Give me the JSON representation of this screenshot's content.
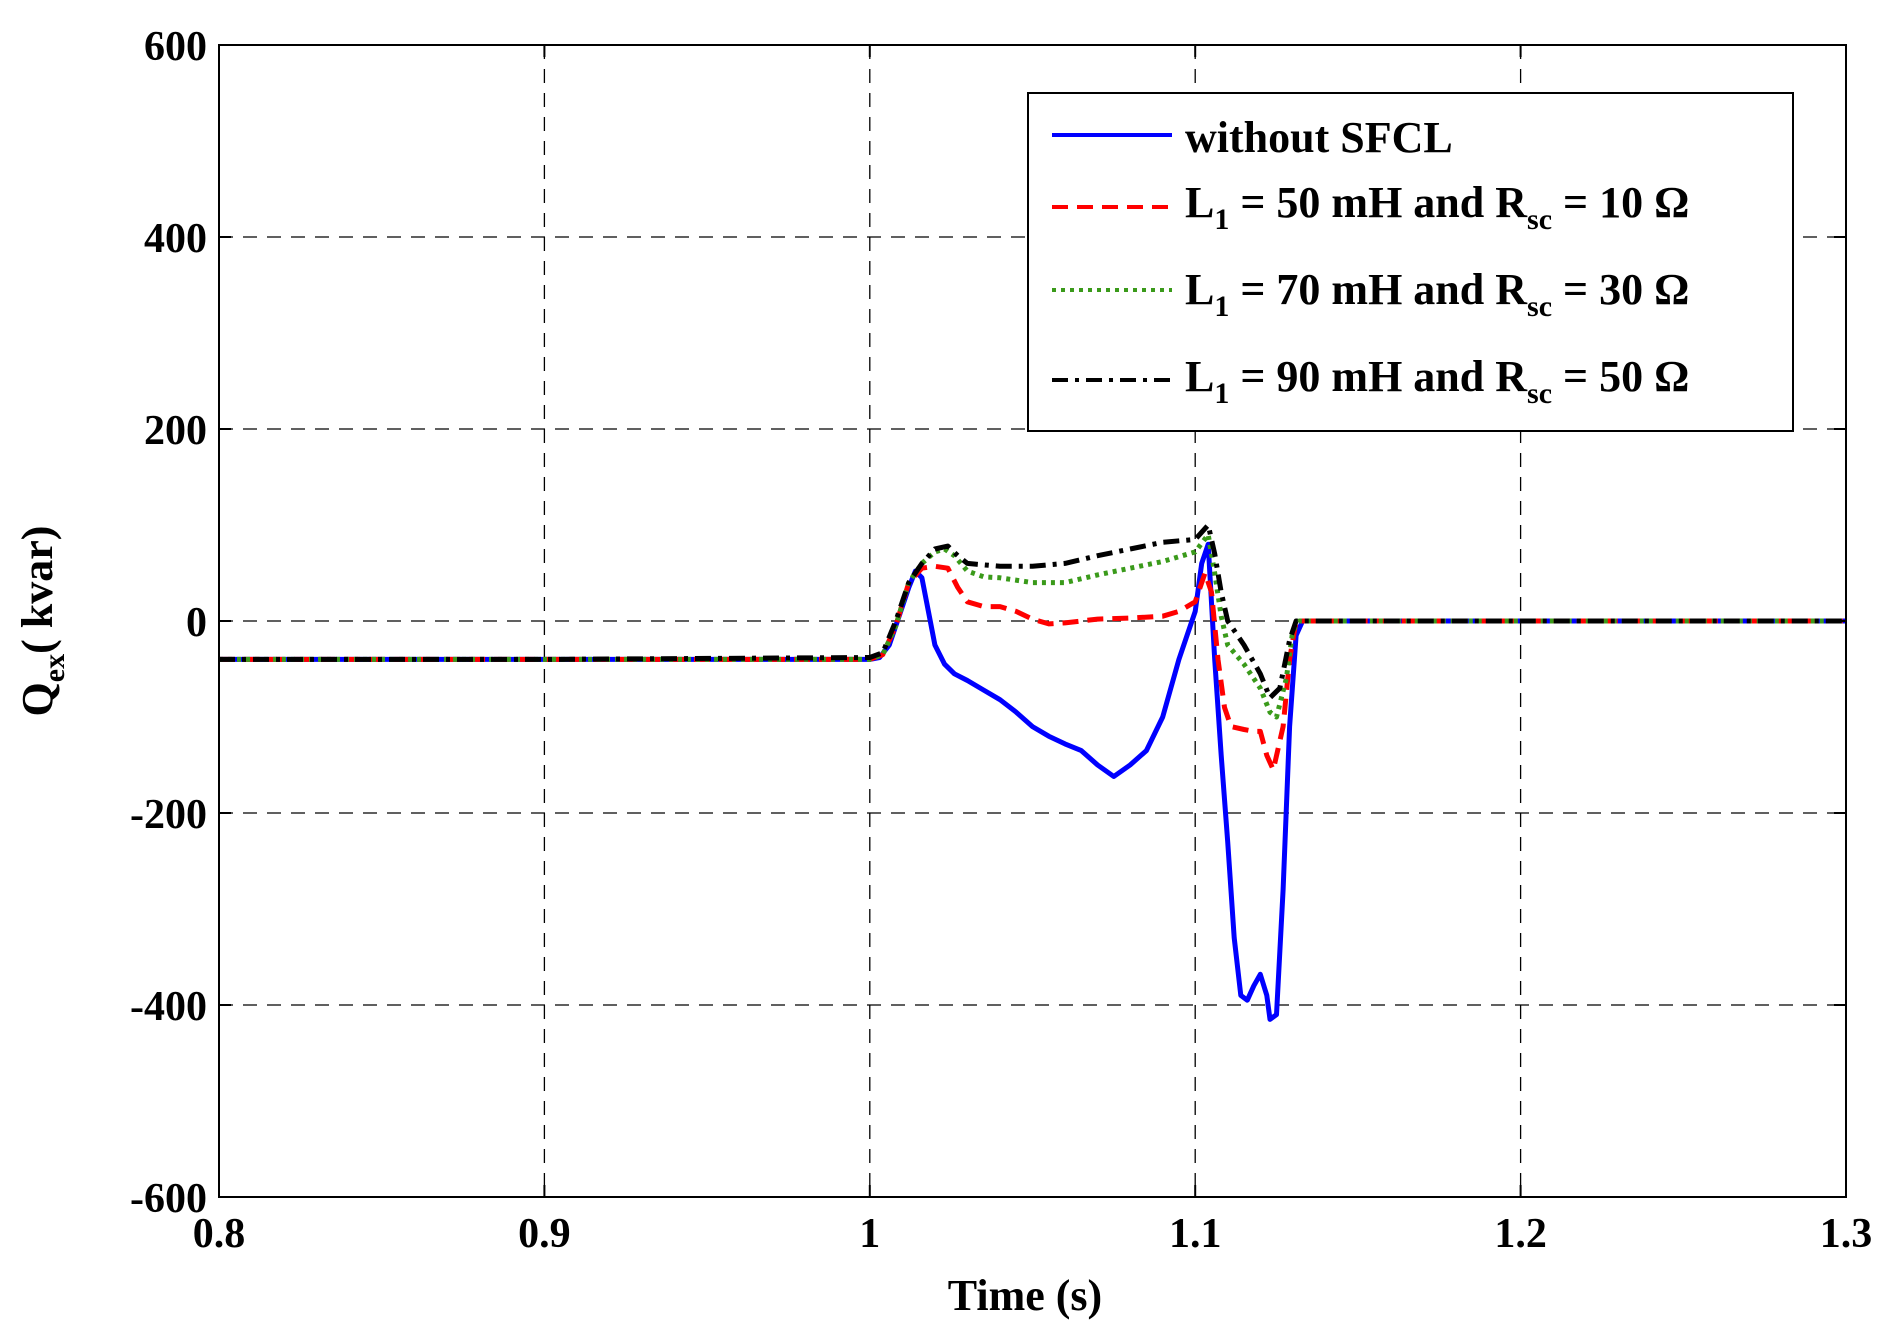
{
  "chart_data": {
    "type": "line",
    "title": "",
    "xlabel": "Time (s)",
    "ylabel": {
      "base": "Q",
      "sub": "ex",
      "rest": "( kvar)"
    },
    "xlim": [
      0.8,
      1.3
    ],
    "ylim": [
      -600,
      600
    ],
    "xticks": [
      0.8,
      0.9,
      1.0,
      1.1,
      1.2,
      1.3
    ],
    "xtick_labels": [
      "0.8",
      "0.9",
      "1",
      "1.1",
      "1.2",
      "1.3"
    ],
    "yticks": [
      -600,
      -400,
      -200,
      0,
      200,
      400,
      600
    ],
    "ytick_labels": [
      "-600",
      "-400",
      "-200",
      "0",
      "200",
      "400",
      "600"
    ],
    "grid": true,
    "legend_position": "top-right",
    "series": [
      {
        "name": "without SFCL",
        "legend": {
          "text": "without SFCL"
        },
        "color": "#0000ff",
        "style": "solid",
        "points": [
          [
            0.8,
            -40
          ],
          [
            0.95,
            -40
          ],
          [
            1.0,
            -40
          ],
          [
            1.003,
            -38
          ],
          [
            1.006,
            -25
          ],
          [
            1.009,
            5
          ],
          [
            1.012,
            35
          ],
          [
            1.014,
            52
          ],
          [
            1.016,
            45
          ],
          [
            1.018,
            10
          ],
          [
            1.02,
            -25
          ],
          [
            1.023,
            -45
          ],
          [
            1.026,
            -55
          ],
          [
            1.03,
            -62
          ],
          [
            1.035,
            -72
          ],
          [
            1.04,
            -82
          ],
          [
            1.045,
            -95
          ],
          [
            1.05,
            -110
          ],
          [
            1.055,
            -120
          ],
          [
            1.06,
            -128
          ],
          [
            1.065,
            -135
          ],
          [
            1.07,
            -150
          ],
          [
            1.075,
            -162
          ],
          [
            1.08,
            -150
          ],
          [
            1.085,
            -135
          ],
          [
            1.09,
            -100
          ],
          [
            1.095,
            -40
          ],
          [
            1.1,
            10
          ],
          [
            1.102,
            60
          ],
          [
            1.104,
            80
          ],
          [
            1.106,
            -40
          ],
          [
            1.108,
            -140
          ],
          [
            1.11,
            -230
          ],
          [
            1.112,
            -330
          ],
          [
            1.114,
            -390
          ],
          [
            1.116,
            -395
          ],
          [
            1.118,
            -380
          ],
          [
            1.12,
            -368
          ],
          [
            1.122,
            -390
          ],
          [
            1.123,
            -415
          ],
          [
            1.125,
            -410
          ],
          [
            1.127,
            -280
          ],
          [
            1.129,
            -110
          ],
          [
            1.131,
            -15
          ],
          [
            1.133,
            0
          ],
          [
            1.3,
            0
          ]
        ]
      },
      {
        "name": "L1 = 50 mH and Rsc = 10 Ω",
        "legend": {
          "pre": "L",
          "sub1": "1",
          "mid": " = 50 mH and R",
          "sub2": "sc",
          "post": " = 10 Ω"
        },
        "color": "#ff0000",
        "style": "dashed",
        "points": [
          [
            0.8,
            -40
          ],
          [
            1.0,
            -40
          ],
          [
            1.004,
            -35
          ],
          [
            1.008,
            -5
          ],
          [
            1.012,
            40
          ],
          [
            1.016,
            55
          ],
          [
            1.02,
            57
          ],
          [
            1.024,
            55
          ],
          [
            1.027,
            35
          ],
          [
            1.03,
            20
          ],
          [
            1.035,
            15
          ],
          [
            1.04,
            15
          ],
          [
            1.045,
            10
          ],
          [
            1.05,
            2
          ],
          [
            1.055,
            -3
          ],
          [
            1.06,
            -2
          ],
          [
            1.07,
            2
          ],
          [
            1.08,
            3
          ],
          [
            1.09,
            5
          ],
          [
            1.095,
            10
          ],
          [
            1.1,
            20
          ],
          [
            1.103,
            50
          ],
          [
            1.105,
            30
          ],
          [
            1.107,
            -40
          ],
          [
            1.109,
            -90
          ],
          [
            1.111,
            -110
          ],
          [
            1.115,
            -113
          ],
          [
            1.118,
            -115
          ],
          [
            1.12,
            -115
          ],
          [
            1.122,
            -140
          ],
          [
            1.124,
            -155
          ],
          [
            1.127,
            -110
          ],
          [
            1.129,
            -40
          ],
          [
            1.131,
            0
          ],
          [
            1.3,
            0
          ]
        ]
      },
      {
        "name": "L1 = 70 mH and Rsc = 30 Ω",
        "legend": {
          "pre": "L",
          "sub1": "1",
          "mid": " = 70 mH and R",
          "sub2": "sc",
          "post": " = 30 Ω"
        },
        "color": "#3a9a1a",
        "style": "dotted",
        "points": [
          [
            0.8,
            -40
          ],
          [
            1.0,
            -40
          ],
          [
            1.004,
            -35
          ],
          [
            1.008,
            -5
          ],
          [
            1.012,
            40
          ],
          [
            1.016,
            60
          ],
          [
            1.02,
            72
          ],
          [
            1.023,
            75
          ],
          [
            1.026,
            68
          ],
          [
            1.03,
            52
          ],
          [
            1.035,
            46
          ],
          [
            1.04,
            45
          ],
          [
            1.05,
            40
          ],
          [
            1.06,
            40
          ],
          [
            1.07,
            48
          ],
          [
            1.08,
            55
          ],
          [
            1.09,
            62
          ],
          [
            1.1,
            72
          ],
          [
            1.104,
            90
          ],
          [
            1.106,
            50
          ],
          [
            1.108,
            5
          ],
          [
            1.11,
            -25
          ],
          [
            1.115,
            -45
          ],
          [
            1.12,
            -70
          ],
          [
            1.123,
            -95
          ],
          [
            1.125,
            -100
          ],
          [
            1.128,
            -60
          ],
          [
            1.13,
            -10
          ],
          [
            1.132,
            0
          ],
          [
            1.3,
            0
          ]
        ]
      },
      {
        "name": "L1 = 90 mH and Rsc = 50 Ω",
        "legend": {
          "pre": "L",
          "sub1": "1",
          "mid": " = 90 mH and R",
          "sub2": "sc",
          "post": " = 50 Ω"
        },
        "color": "#000000",
        "style": "dashdot",
        "points": [
          [
            0.8,
            -40
          ],
          [
            0.9,
            -40
          ],
          [
            1.0,
            -38
          ],
          [
            1.004,
            -33
          ],
          [
            1.008,
            0
          ],
          [
            1.012,
            40
          ],
          [
            1.016,
            60
          ],
          [
            1.02,
            75
          ],
          [
            1.024,
            78
          ],
          [
            1.027,
            68
          ],
          [
            1.03,
            60
          ],
          [
            1.04,
            57
          ],
          [
            1.05,
            57
          ],
          [
            1.06,
            60
          ],
          [
            1.07,
            68
          ],
          [
            1.08,
            75
          ],
          [
            1.09,
            82
          ],
          [
            1.1,
            85
          ],
          [
            1.104,
            100
          ],
          [
            1.106,
            70
          ],
          [
            1.108,
            30
          ],
          [
            1.11,
            0
          ],
          [
            1.115,
            -25
          ],
          [
            1.12,
            -55
          ],
          [
            1.123,
            -80
          ],
          [
            1.126,
            -70
          ],
          [
            1.129,
            -20
          ],
          [
            1.131,
            0
          ],
          [
            1.3,
            0
          ]
        ]
      }
    ]
  }
}
